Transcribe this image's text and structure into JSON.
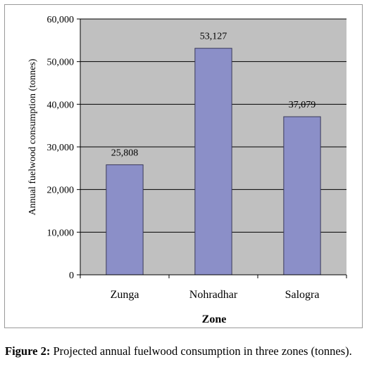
{
  "chart_data": {
    "type": "bar",
    "categories": [
      "Zunga",
      "Nohradhar",
      "Salogra"
    ],
    "values": [
      25808,
      53127,
      37079
    ],
    "data_labels": [
      "25,808",
      "53,127",
      "37,079"
    ],
    "title": "",
    "xlabel": "Zone",
    "ylabel": "Annual fuelwood consumption (tonnes)",
    "ylim": [
      0,
      60000
    ],
    "yticks": [
      0,
      10000,
      20000,
      30000,
      40000,
      50000,
      60000
    ],
    "ytick_labels": [
      "0",
      "10,000",
      "20,000",
      "30,000",
      "40,000",
      "50,000",
      "60,000"
    ],
    "grid": true,
    "legend": "none",
    "colors": {
      "bar": "#8b8fc8",
      "bar_border": "#3a3a5a",
      "plot_bg": "#c0c0c0",
      "grid": "#000000"
    }
  },
  "caption": {
    "label": "Figure 2:",
    "text": " Projected annual fuelwood consumption in three zones (tonnes)."
  }
}
